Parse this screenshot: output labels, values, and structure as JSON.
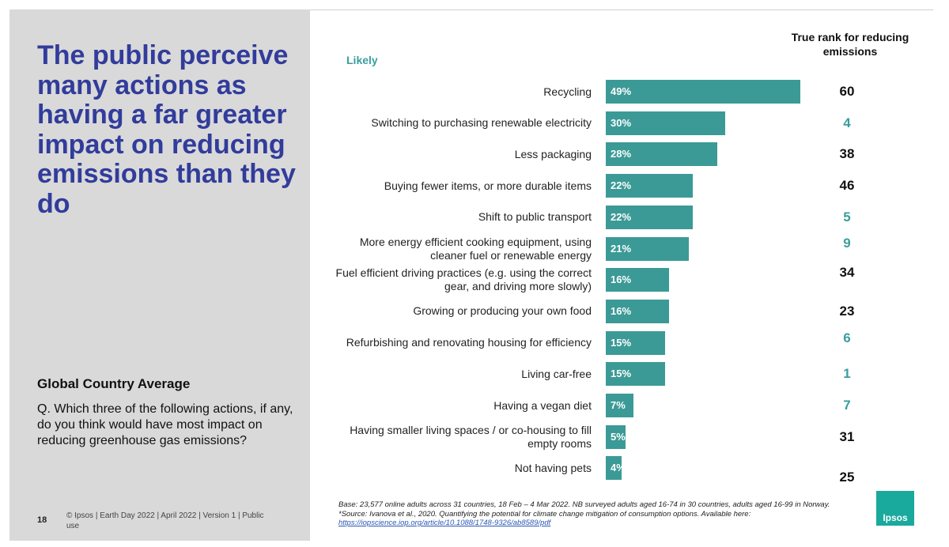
{
  "slide": {
    "title": "The public perceive many actions as having a far greater impact on reducing emissions than they do",
    "section_heading": "Global Country Average",
    "question": "Q. Which three of the following actions, if any, do you think would have most impact on reducing greenhouse gas emissions?",
    "page_number": "18",
    "footer": "© Ipsos | Earth Day 2022 | April 2022 | Version 1 | Public use",
    "base_note": "Base: 23,577 online adults across 31 countries,  18 Feb – 4 Mar 2022. NB surveyed adults aged 16-74 in 30 countries, adults aged 16-99 in Norway. *Source: Ivanova et al., 2020. Quantifying the potential for climate change mitigation of consumption options. Available here:",
    "base_url": "https://iopscience.iop.org/article/10.1088/1748-9326/ab8589/pdf",
    "logo_text": "Ipsos",
    "colors": {
      "title": "#313c9b",
      "bar": "#3b9a96",
      "rank_teal": "#3a9e9e",
      "rank_black": "#111111",
      "logo": "#1aa99d"
    }
  },
  "chart_data": {
    "type": "bar",
    "orientation": "horizontal",
    "series_label": "Likely",
    "rank_header": "True rank for reducing emissions",
    "xlim": [
      0,
      49
    ],
    "categories": [
      "Recycling",
      "Switching to purchasing renewable electricity",
      "Less packaging",
      "Buying fewer items, or more durable items",
      "Shift to public transport",
      "More energy efficient cooking equipment, using cleaner fuel or renewable energy",
      "Fuel efficient driving practices (e.g. using the correct gear, and driving more slowly)",
      "Growing or producing your own food",
      "Refurbishing and renovating housing for efficiency",
      "Living car-free",
      "Having a vegan diet",
      "Having smaller living spaces / or co-housing to fill empty rooms",
      "Not having pets"
    ],
    "values": [
      49,
      30,
      28,
      22,
      22,
      21,
      16,
      16,
      15,
      15,
      7,
      5,
      4
    ],
    "value_labels": [
      "49%",
      "30%",
      "28%",
      "22%",
      "22%",
      "21%",
      "16%",
      "16%",
      "15%",
      "15%",
      "7%",
      "5%",
      "4%"
    ],
    "true_rank": [
      "60",
      "4",
      "38",
      "46",
      "5",
      "9",
      "34",
      "23",
      "6",
      "1",
      "7",
      "31",
      "25"
    ],
    "rank_colors": [
      "#111111",
      "#3a9e9e",
      "#111111",
      "#111111",
      "#3a9e9e",
      "#3a9e9e",
      "#111111",
      "#111111",
      "#3a9e9e",
      "#3a9e9e",
      "#3a9e9e",
      "#111111",
      "#111111"
    ]
  }
}
